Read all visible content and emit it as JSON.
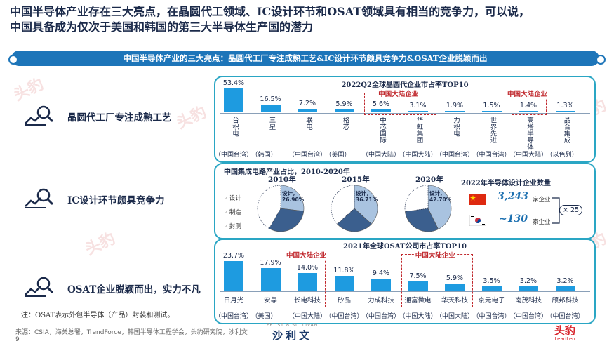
{
  "page": {
    "title_line1": "中国半导体产业存在三大亮点，在晶圆代工领域、IC设计环节和OSAT领域具有相当的竞争力，可以说，",
    "title_line2": "中国具备成为仅次于美国和韩国的第三大半导体生产国的潜力",
    "ribbon": "中国半导体产业的三大亮点：晶圆代工厂专注成熟工艺&IC设计环节颇具竞争力&OSAT企业脱颖而出",
    "watermark": "头豹",
    "watermark_sub": "LeadLeo",
    "page_number": "9",
    "footnote": "注：OSAT表示外包半导体（产品）封装和测试。",
    "source": "来源：CSIA，海关总署，TrendForce，韩国半导体工程学会，头豹研究院，沙利文",
    "logo_sullivan": "沙利文",
    "logo_sullivan_en": "FROST & SULLIVAN",
    "logo_leadleo": "头豹",
    "logo_leadleo_en": "LeadLeo"
  },
  "rows": {
    "r1": "晶圆代工厂专注成熟工艺",
    "r2": "IC设计环节颇具竞争力",
    "r3": "OSAT企业脱颖而出，实力不凡"
  },
  "colors": {
    "bar": "#1e9be0",
    "ribbon": "#1d75b9",
    "border": "#2aa6c4",
    "highlight": "#c0282d",
    "pie_design": "#a9c3e0",
    "pie_mfg": "#3b5f8e",
    "pie_test": "#ffffff"
  },
  "highlight_label": "中国大陆企业",
  "chart_data": [
    {
      "type": "bar",
      "title": "2022Q2全球晶圆代企业市占率TOP10",
      "categories": [
        "台积电",
        "三星",
        "联电",
        "格芯",
        "中芯国际",
        "华虹集团",
        "力积电",
        "世界先进",
        "高塔半导体",
        "晶合集成"
      ],
      "regions": [
        "（中国台湾）",
        "（韩国）",
        "（中国台湾）",
        "（美国）",
        "（中国大陆）",
        "（中国大陆）",
        "（中国台湾）",
        "（中国台湾）",
        "（中国大陆）",
        "（以色列）"
      ],
      "values": [
        53.4,
        16.5,
        7.2,
        5.9,
        5.6,
        3.1,
        1.9,
        1.5,
        1.4,
        1.3
      ],
      "labels": [
        "53.4%",
        "16.5%",
        "7.2%",
        "5.9%",
        "5.6%",
        "3.1%",
        "1.9%",
        "1.5%",
        "1.4%",
        "1.3%"
      ],
      "highlight_groups": [
        [
          4,
          5
        ],
        [
          8
        ]
      ]
    },
    {
      "type": "pie",
      "title": "中国集成电路产业占比，2010-2020年",
      "legend": [
        "设计",
        "制造",
        "封测"
      ],
      "pies": [
        {
          "year": "2010年",
          "values": [
            26.9,
            31.5,
            41.6
          ],
          "label": "设计，26.90%"
        },
        {
          "year": "2015年",
          "values": [
            36.71,
            26.5,
            36.79
          ],
          "label": "设计，36.71%"
        },
        {
          "year": "2020年",
          "values": [
            42.7,
            30.2,
            27.1
          ],
          "label": "设计，42.70%"
        }
      ]
    },
    {
      "type": "table",
      "title": "2022年半导体设计企业数量",
      "rows": [
        {
          "country": "中国",
          "value": "3,243",
          "unit": "家企业"
        },
        {
          "country": "韩国",
          "value": "~130",
          "unit": "家企业"
        }
      ],
      "ratio": "× 25"
    },
    {
      "type": "bar",
      "title": "2021年全球OSAT公司市占率TOP10",
      "categories": [
        "日月光",
        "安靠",
        "长电科技",
        "矽品",
        "力成科技",
        "通富微电",
        "华天科技",
        "京元电子",
        "南茂科技",
        "颀邦科技"
      ],
      "regions": [
        "（中国台湾）",
        "（美国）",
        "（中国大陆）",
        "（中国台湾）",
        "（中国台湾）",
        "（中国大陆）",
        "（中国大陆）",
        "（中国台湾）",
        "（中国台湾）",
        "（中国台湾）"
      ],
      "values": [
        23.7,
        17.9,
        14.0,
        11.8,
        9.4,
        7.5,
        5.9,
        3.5,
        3.2,
        3.2
      ],
      "labels": [
        "23.7%",
        "17.9%",
        "14.0%",
        "11.8%",
        "9.4%",
        "7.5%",
        "5.9%",
        "3.5%",
        "3.2%",
        "3.2%"
      ],
      "highlight_groups": [
        [
          2
        ],
        [
          5,
          6
        ]
      ]
    }
  ]
}
